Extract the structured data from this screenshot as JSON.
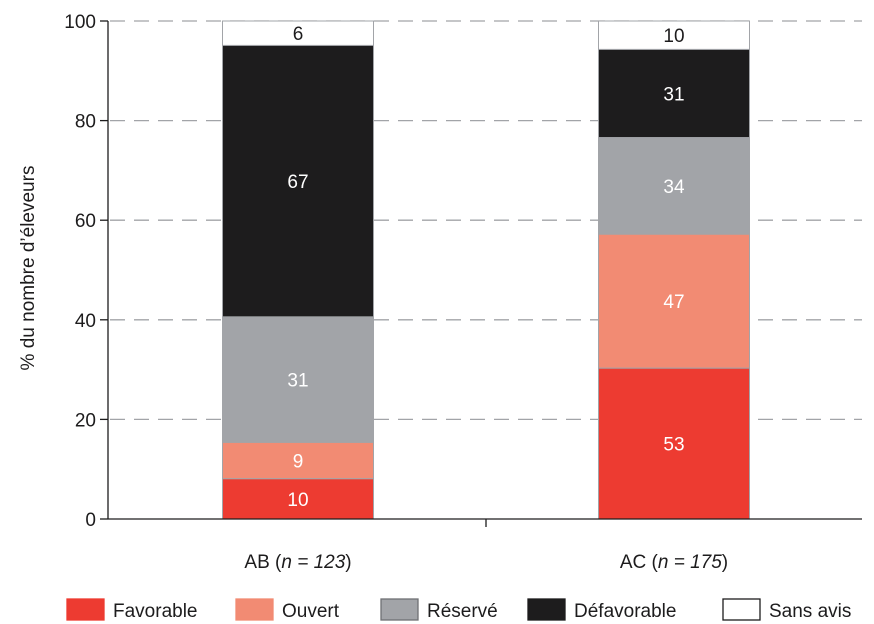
{
  "chart_data": {
    "type": "bar",
    "stacked": true,
    "ylabel": "% du nombre d’éleveurs",
    "ylim": [
      0,
      100
    ],
    "yticks": [
      "0",
      "20",
      "40",
      "60",
      "80",
      "100"
    ],
    "grid": "horizontal dashed",
    "legend_position": "bottom",
    "categories": [
      {
        "prefix": "AB (",
        "n": "n",
        "eq": " = ",
        "count": "123",
        "suffix": ")"
      },
      {
        "prefix": "AC (",
        "n": "n",
        "eq": " = ",
        "count": "175",
        "suffix": ")"
      }
    ],
    "series": [
      {
        "name": "Favorable",
        "color": "#ed3b31",
        "label_color": "#ffffff",
        "counts": [
          "10",
          "53"
        ],
        "values": [
          8.1,
          30.3
        ]
      },
      {
        "name": "Ouvert",
        "color": "#f28b73",
        "label_color": "#ffffff",
        "counts": [
          "9",
          "47"
        ],
        "values": [
          7.3,
          26.9
        ]
      },
      {
        "name": "Réservé",
        "color": "#a2a4a8",
        "label_color": "#ffffff",
        "counts": [
          "31",
          "34"
        ],
        "values": [
          25.2,
          19.4
        ]
      },
      {
        "name": "Défavorable",
        "color": "#1d1c1d",
        "label_color": "#ffffff",
        "counts": [
          "67",
          "31"
        ],
        "values": [
          54.5,
          17.7
        ]
      },
      {
        "name": "Sans avis",
        "color": "#ffffff",
        "label_color": "#1d1c1d",
        "counts": [
          "6",
          "10"
        ],
        "values": [
          4.9,
          5.7
        ]
      }
    ]
  }
}
